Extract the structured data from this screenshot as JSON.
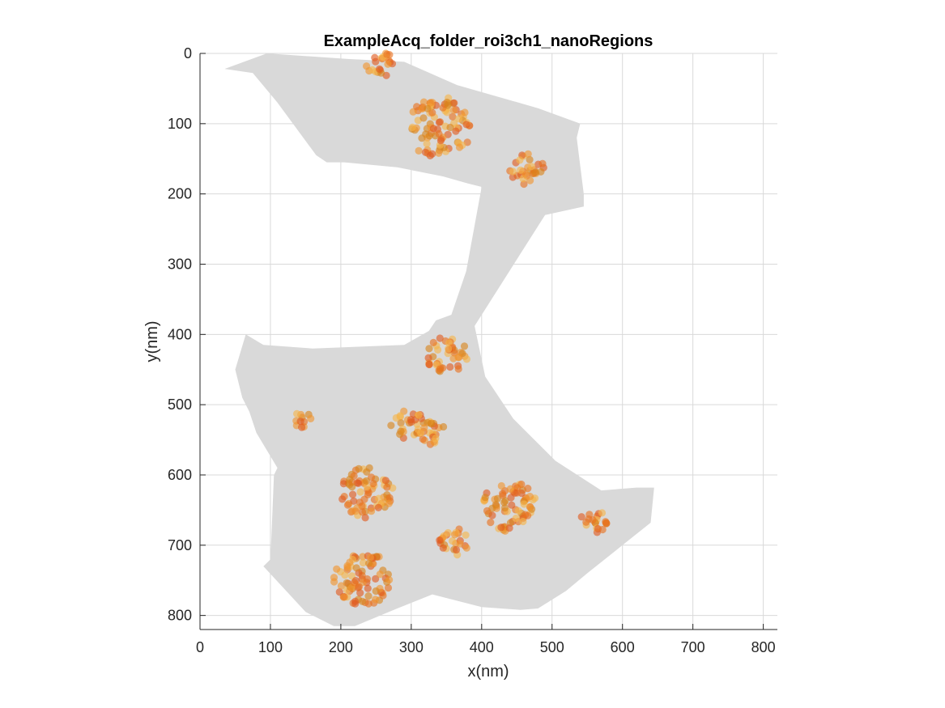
{
  "chart_data": {
    "type": "scatter",
    "title": "ExampleAcq_folder_roi3ch1_nanoRegions",
    "xlabel": "x(nm)",
    "ylabel": "y(nm)",
    "xlim": [
      0,
      820
    ],
    "ylim": [
      820,
      0
    ],
    "y_reversed": true,
    "grid": true,
    "x_ticks": [
      0,
      100,
      200,
      300,
      400,
      500,
      600,
      700,
      800
    ],
    "y_ticks": [
      0,
      100,
      200,
      300,
      400,
      500,
      600,
      700,
      800
    ],
    "region": {
      "name": "",
      "color": "#d9d9d9",
      "polygon": [
        [
          35,
          22
        ],
        [
          95,
          0
        ],
        [
          210,
          8
        ],
        [
          290,
          12
        ],
        [
          365,
          45
        ],
        [
          480,
          78
        ],
        [
          540,
          100
        ],
        [
          535,
          120
        ],
        [
          545,
          200
        ],
        [
          545,
          218
        ],
        [
          490,
          230
        ],
        [
          390,
          388
        ],
        [
          405,
          460
        ],
        [
          445,
          520
        ],
        [
          505,
          580
        ],
        [
          570,
          622
        ],
        [
          620,
          618
        ],
        [
          645,
          618
        ],
        [
          640,
          668
        ],
        [
          600,
          700
        ],
        [
          550,
          740
        ],
        [
          520,
          765
        ],
        [
          480,
          790
        ],
        [
          455,
          792
        ],
        [
          400,
          788
        ],
        [
          330,
          770
        ],
        [
          280,
          790
        ],
        [
          220,
          815
        ],
        [
          190,
          815
        ],
        [
          150,
          795
        ],
        [
          125,
          768
        ],
        [
          90,
          730
        ],
        [
          100,
          720
        ],
        [
          105,
          600
        ],
        [
          110,
          590
        ],
        [
          80,
          540
        ],
        [
          70,
          510
        ],
        [
          60,
          490
        ],
        [
          50,
          450
        ],
        [
          65,
          400
        ],
        [
          90,
          415
        ],
        [
          160,
          420
        ],
        [
          290,
          415
        ],
        [
          325,
          395
        ],
        [
          335,
          380
        ],
        [
          357,
          372
        ],
        [
          378,
          310
        ],
        [
          400,
          190
        ],
        [
          380,
          185
        ],
        [
          345,
          175
        ],
        [
          280,
          162
        ],
        [
          205,
          155
        ],
        [
          180,
          155
        ],
        [
          165,
          145
        ],
        [
          110,
          70
        ],
        [
          75,
          28
        ]
      ]
    },
    "clusters": [
      {
        "cx": 255,
        "cy": 15,
        "r": 22,
        "n": 22
      },
      {
        "cx": 340,
        "cy": 105,
        "r": 48,
        "n": 90
      },
      {
        "cx": 465,
        "cy": 165,
        "r": 26,
        "n": 30
      },
      {
        "cx": 350,
        "cy": 430,
        "r": 30,
        "n": 40
      },
      {
        "cx": 145,
        "cy": 520,
        "r": 14,
        "n": 11
      },
      {
        "cx": 295,
        "cy": 527,
        "r": 24,
        "n": 28
      },
      {
        "cx": 330,
        "cy": 540,
        "r": 20,
        "n": 22
      },
      {
        "cx": 235,
        "cy": 625,
        "r": 40,
        "n": 70
      },
      {
        "cx": 360,
        "cy": 695,
        "r": 22,
        "n": 25
      },
      {
        "cx": 440,
        "cy": 645,
        "r": 40,
        "n": 70
      },
      {
        "cx": 560,
        "cy": 665,
        "r": 20,
        "n": 20
      },
      {
        "cx": 232,
        "cy": 748,
        "r": 42,
        "n": 80
      }
    ],
    "point_colors": [
      "#e8711f",
      "#f0952e",
      "#f6b44a",
      "#e05a1e",
      "#d8841c"
    ]
  }
}
